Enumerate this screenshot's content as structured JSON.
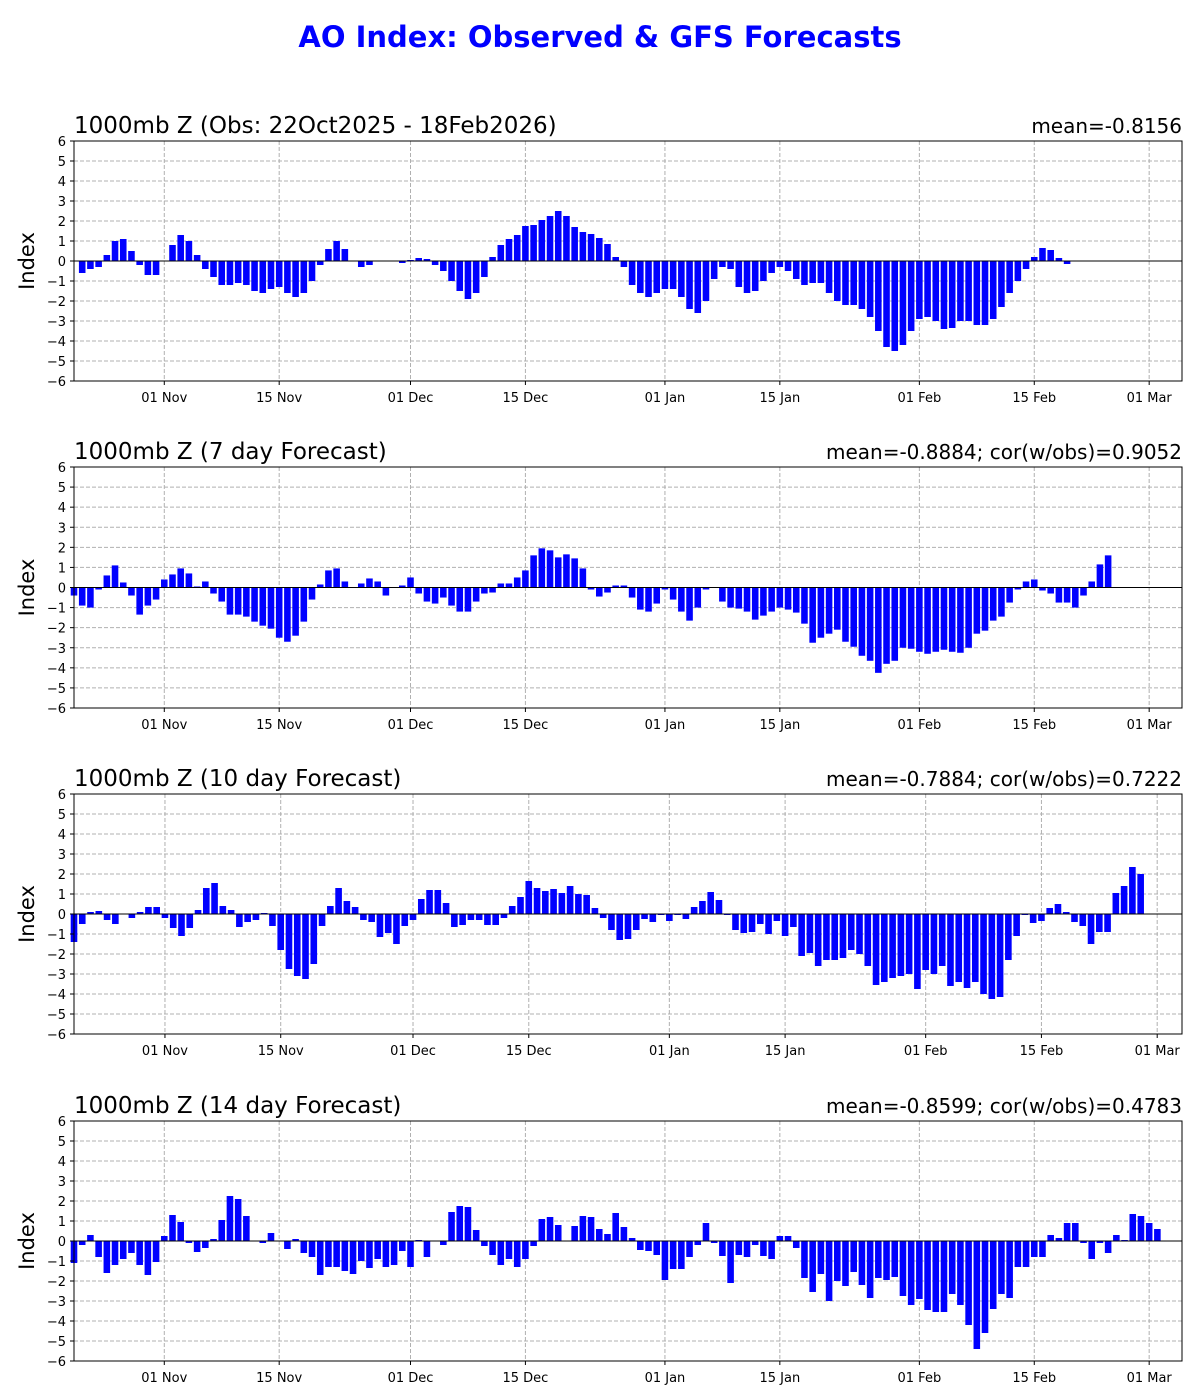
{
  "title": "AO Index: Observed & GFS Forecasts",
  "colors": {
    "bar": "#0000ff",
    "title": "#0000ff",
    "grid": "#b0b0b0",
    "axis": "#000000"
  },
  "chart_data": [
    {
      "type": "bar",
      "title": "1000mb Z (Obs: 22Oct2025 - 18Feb2026)",
      "stat": "mean=-0.8156",
      "ylabel": "Index",
      "xlabel": "",
      "ylim": [
        -6,
        6
      ],
      "yticks": [
        -6,
        -5,
        -4,
        -3,
        -2,
        -1,
        0,
        1,
        2,
        3,
        4,
        5,
        6
      ],
      "xlim": [
        "2025-10-21",
        "2026-03-05"
      ],
      "xticks": [
        "01 Nov",
        "15 Nov",
        "01 Dec",
        "15 Dec",
        "01 Jan",
        "15 Jan",
        "01 Feb",
        "15 Feb",
        "01 Mar"
      ],
      "x_start": "2025-10-22",
      "grid": true,
      "values": [
        -0.6,
        -0.4,
        -0.3,
        0.3,
        1.0,
        1.1,
        0.5,
        -0.2,
        -0.7,
        -0.7,
        0,
        0.8,
        1.3,
        1.0,
        0.3,
        -0.4,
        -0.8,
        -1.2,
        -1.2,
        -1.1,
        -1.2,
        -1.5,
        -1.6,
        -1.4,
        -1.3,
        -1.6,
        -1.8,
        -1.6,
        -1.0,
        -0.2,
        0.6,
        1.0,
        0.6,
        0,
        -0.3,
        -0.2,
        0,
        0,
        0,
        -0.1,
        0.05,
        0.15,
        0.1,
        -0.2,
        -0.5,
        -1.0,
        -1.5,
        -1.9,
        -1.6,
        -0.8,
        0.2,
        0.8,
        1.1,
        1.3,
        1.75,
        1.8,
        2.05,
        2.25,
        2.5,
        2.25,
        1.7,
        1.45,
        1.35,
        1.15,
        0.85,
        0.2,
        -0.3,
        -1.2,
        -1.6,
        -1.8,
        -1.6,
        -1.4,
        -1.4,
        -1.8,
        -2.4,
        -2.6,
        -2.0,
        -0.9,
        -0.3,
        -0.4,
        -1.3,
        -1.6,
        -1.5,
        -1.0,
        -0.6,
        -0.3,
        -0.5,
        -0.9,
        -1.2,
        -1.1,
        -1.1,
        -1.6,
        -2.0,
        -2.2,
        -2.2,
        -2.4,
        -2.8,
        -3.5,
        -4.3,
        -4.5,
        -4.2,
        -3.5,
        -2.9,
        -2.8,
        -3.0,
        -3.4,
        -3.35,
        -3.0,
        -3.0,
        -3.2,
        -3.2,
        -2.9,
        -2.3,
        -1.6,
        -1.0,
        -0.4,
        0.2,
        0.65,
        0.55,
        0.15,
        -0.15
      ]
    },
    {
      "type": "bar",
      "title": "1000mb Z (7 day Forecast)",
      "stat": "mean=-0.8884; cor(w/obs)=0.9052",
      "ylabel": "Index",
      "xlabel": "",
      "ylim": [
        -6,
        6
      ],
      "yticks": [
        -6,
        -5,
        -4,
        -3,
        -2,
        -1,
        0,
        1,
        2,
        3,
        4,
        5,
        6
      ],
      "xlim": [
        "2025-10-21",
        "2026-03-05"
      ],
      "xticks": [
        "01 Nov",
        "15 Nov",
        "01 Dec",
        "15 Dec",
        "01 Jan",
        "15 Jan",
        "01 Feb",
        "15 Feb",
        "01 Mar"
      ],
      "x_start": "2025-10-21",
      "grid": true,
      "values": [
        -0.4,
        -0.9,
        -1.0,
        -0.1,
        0.6,
        1.1,
        0.25,
        -0.4,
        -1.35,
        -0.9,
        -0.6,
        0.4,
        0.65,
        0.95,
        0.7,
        0.05,
        0.3,
        -0.3,
        -0.7,
        -1.35,
        -1.35,
        -1.45,
        -1.7,
        -1.9,
        -2.05,
        -2.5,
        -2.7,
        -2.4,
        -1.7,
        -0.6,
        0.15,
        0.85,
        0.95,
        0.3,
        0,
        0.2,
        0.45,
        0.3,
        -0.4,
        0,
        0.1,
        0.5,
        -0.3,
        -0.7,
        -0.8,
        -0.5,
        -0.9,
        -1.2,
        -1.2,
        -0.7,
        -0.3,
        -0.25,
        0.2,
        0.2,
        0.5,
        0.85,
        1.6,
        1.95,
        1.85,
        1.5,
        1.65,
        1.45,
        0.95,
        -0.1,
        -0.45,
        -0.25,
        0.1,
        0.1,
        -0.5,
        -1.1,
        -1.2,
        -0.8,
        -0.1,
        -0.6,
        -1.2,
        -1.65,
        -1.0,
        -0.1,
        0,
        -0.7,
        -1.0,
        -1.05,
        -1.2,
        -1.6,
        -1.4,
        -1.2,
        -1.0,
        -1.1,
        -1.25,
        -1.8,
        -2.75,
        -2.5,
        -2.3,
        -2.1,
        -2.7,
        -2.95,
        -3.4,
        -3.65,
        -4.25,
        -3.8,
        -3.65,
        -3.0,
        -3.05,
        -3.2,
        -3.3,
        -3.2,
        -3.1,
        -3.2,
        -3.25,
        -3.0,
        -2.3,
        -2.15,
        -1.65,
        -1.45,
        -0.75,
        -0.1,
        0.3,
        0.4,
        -0.15,
        -0.3,
        -0.75,
        -0.75,
        -1.0,
        -0.4,
        0.3,
        1.15,
        1.6
      ]
    },
    {
      "type": "bar",
      "title": "1000mb Z (10 day Forecast)",
      "stat": "mean=-0.7884; cor(w/obs)=0.7222",
      "ylabel": "Index",
      "xlabel": "",
      "ylim": [
        -6,
        6
      ],
      "yticks": [
        -6,
        -5,
        -4,
        -3,
        -2,
        -1,
        0,
        1,
        2,
        3,
        4,
        5,
        6
      ],
      "xlim": [
        "2025-10-21",
        "2026-03-04"
      ],
      "xticks": [
        "01 Nov",
        "15 Nov",
        "01 Dec",
        "15 Dec",
        "01 Jan",
        "15 Jan",
        "01 Feb",
        "15 Feb",
        "01 Mar"
      ],
      "x_start": "2025-10-21",
      "grid": true,
      "values": [
        -1.4,
        -0.5,
        0.1,
        0.15,
        -0.3,
        -0.5,
        0,
        -0.2,
        0.1,
        0.35,
        0.35,
        -0.2,
        -0.7,
        -1.1,
        -0.7,
        0.2,
        1.3,
        1.55,
        0.4,
        0.2,
        -0.65,
        -0.4,
        -0.3,
        0.05,
        -0.6,
        -1.8,
        -2.75,
        -3.1,
        -3.25,
        -2.5,
        -0.6,
        0.4,
        1.3,
        0.65,
        0.35,
        -0.3,
        -0.4,
        -1.15,
        -0.95,
        -1.5,
        -0.6,
        -0.3,
        0.75,
        1.2,
        1.2,
        0.55,
        -0.65,
        -0.55,
        -0.3,
        -0.3,
        -0.55,
        -0.55,
        -0.2,
        0.4,
        0.85,
        1.65,
        1.3,
        1.15,
        1.25,
        1.05,
        1.4,
        1.0,
        0.95,
        0.3,
        -0.2,
        -0.8,
        -1.3,
        -1.25,
        -0.8,
        -0.25,
        -0.4,
        -0.05,
        -0.35,
        -0.05,
        -0.25,
        0.35,
        0.65,
        1.1,
        0.7,
        -0.05,
        -0.8,
        -0.95,
        -0.9,
        -0.5,
        -1.0,
        -0.35,
        -1.1,
        -0.65,
        -2.1,
        -1.95,
        -2.6,
        -2.3,
        -2.3,
        -2.2,
        -1.8,
        -2.0,
        -2.6,
        -3.55,
        -3.4,
        -3.2,
        -3.1,
        -3.0,
        -3.75,
        -2.8,
        -3.0,
        -2.6,
        -3.6,
        -3.4,
        -3.7,
        -3.4,
        -4.0,
        -4.25,
        -4.15,
        -2.3,
        -1.1,
        -0.05,
        -0.45,
        -0.35,
        0.3,
        0.5,
        0.1,
        -0.4,
        -0.6,
        -1.5,
        -0.9,
        -0.9,
        1.05,
        1.4,
        2.35,
        2.0
      ]
    },
    {
      "type": "bar",
      "title": "1000mb Z (14 day Forecast)",
      "stat": "mean=-0.8599; cor(w/obs)=0.4783",
      "ylabel": "Index",
      "xlabel": "",
      "ylim": [
        -6,
        6
      ],
      "yticks": [
        -6,
        -5,
        -4,
        -3,
        -2,
        -1,
        0,
        1,
        2,
        3,
        4,
        5,
        6
      ],
      "xlim": [
        "2025-10-21",
        "2026-03-05"
      ],
      "xticks": [
        "01 Nov",
        "15 Nov",
        "01 Dec",
        "15 Dec",
        "01 Jan",
        "15 Jan",
        "01 Feb",
        "15 Feb",
        "01 Mar"
      ],
      "x_start": "2025-10-21",
      "grid": true,
      "values": [
        -1.1,
        -0.2,
        0.3,
        -0.8,
        -1.6,
        -1.2,
        -0.9,
        -0.6,
        -1.2,
        -1.7,
        -1.05,
        0.25,
        1.3,
        0.95,
        -0.1,
        -0.55,
        -0.35,
        0.1,
        1.05,
        2.25,
        2.1,
        1.25,
        0,
        -0.1,
        0.4,
        0,
        -0.4,
        0.1,
        -0.6,
        -0.8,
        -1.7,
        -1.3,
        -1.3,
        -1.5,
        -1.65,
        -1.0,
        -1.35,
        -0.9,
        -1.3,
        -1.2,
        -0.5,
        -1.3,
        0.05,
        -0.8,
        0,
        -0.2,
        1.45,
        1.75,
        1.7,
        0.55,
        -0.25,
        -0.7,
        -1.2,
        -0.9,
        -1.3,
        -0.9,
        -0.25,
        1.1,
        1.2,
        0.8,
        0,
        0.75,
        1.25,
        1.2,
        0.6,
        0.35,
        1.4,
        0.7,
        0.15,
        -0.45,
        -0.5,
        -0.7,
        -1.95,
        -1.4,
        -1.4,
        -0.8,
        -0.2,
        0.9,
        -0.1,
        -0.75,
        -2.1,
        -0.7,
        -0.8,
        -0.2,
        -0.75,
        -0.9,
        0.25,
        0.25,
        -0.35,
        -1.85,
        -2.55,
        -1.65,
        -3.0,
        -2.0,
        -2.25,
        -1.55,
        -2.2,
        -2.85,
        -1.85,
        -1.95,
        -1.8,
        -2.75,
        -3.2,
        -2.9,
        -3.45,
        -3.55,
        -3.55,
        -2.65,
        -3.2,
        -4.2,
        -5.4,
        -4.6,
        -3.4,
        -2.65,
        -2.85,
        -1.3,
        -1.3,
        -0.8,
        -0.8,
        0.3,
        0.15,
        0.9,
        0.9,
        -0.1,
        -0.9,
        -0.1,
        -0.6,
        0.3,
        0.05,
        1.35,
        1.25,
        0.9,
        0.6
      ]
    }
  ]
}
